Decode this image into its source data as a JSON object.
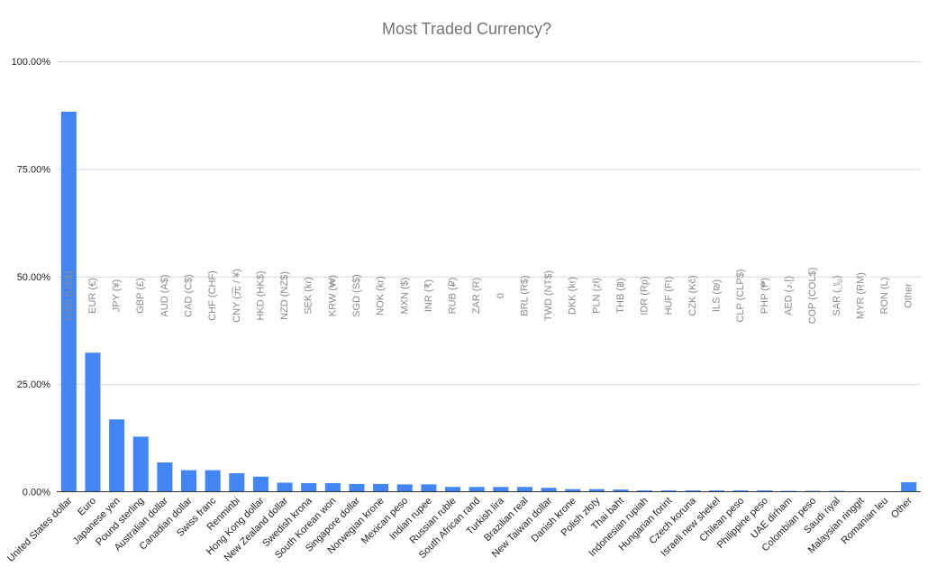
{
  "chart_data": {
    "type": "bar",
    "title": "Most Traded Currency?",
    "xlabel": "",
    "ylabel": "",
    "ylim": [
      0,
      100
    ],
    "yticks": [
      "0.00%",
      "25.00%",
      "50.00%",
      "75.00%",
      "100.00%"
    ],
    "grid": true,
    "legend": "none",
    "bar_color": "#4285f4",
    "categories": [
      "United States dollar",
      "Euro",
      "Japanese yen",
      "Pound sterling",
      "Australian dollar",
      "Canadian dollar",
      "Swiss franc",
      "Renminbi",
      "Hong Kong dollar",
      "New Zealand dollar",
      "Swedish krona",
      "South Korean won",
      "Singapore dollar",
      "Norwegian krone",
      "Mexican peso",
      "Indian rupee",
      "Russian ruble",
      "South African rand",
      "Turkish lira",
      "Brazilian real",
      "New Taiwan dollar",
      "Danish krone",
      "Polish złoty",
      "Thai baht",
      "Indonesian rupiah",
      "Hungarian forint",
      "Czech koruna",
      "Israeli new shekel",
      "Chilean peso",
      "Philippine peso",
      "UAE dirham",
      "Colombian peso",
      "Saudi riyal",
      "Malaysian ringgit",
      "Romanian leu",
      "Other"
    ],
    "data_labels": [
      "USD (US$)",
      "EUR (€)",
      "JPY (¥)",
      "GBP (£)",
      "AUD (A$)",
      "CAD (C$)",
      "CHF (CHF)",
      "CNY (元 / ¥)",
      "HKD (HK$)",
      "NZD (NZ$)",
      "SEK (kr)",
      "KRW (₩)",
      "SGD (S$)",
      "NOK (kr)",
      "MXN ($)",
      "INR (₹)",
      "RUB (₽)",
      "ZAR (R)",
      "0",
      "BRL (R$)",
      "TWD (NT$)",
      "DKK (kr)",
      "PLN (zł)",
      "THB (฿)",
      "IDR (Rp)",
      "HUF (Ft)",
      "CZK (Kč)",
      "ILS (₪)",
      "CLP (CLP$)",
      "PHP (₱)",
      "AED (إ.د)",
      "COP (COL$)",
      "SAR (﷼)",
      "MYR (RM)",
      "RON (L)",
      "Other"
    ],
    "values": [
      88.3,
      32.3,
      16.8,
      12.8,
      6.8,
      5.0,
      5.0,
      4.3,
      3.5,
      2.1,
      2.0,
      2.0,
      1.8,
      1.8,
      1.7,
      1.7,
      1.1,
      1.1,
      1.1,
      1.1,
      0.9,
      0.6,
      0.6,
      0.5,
      0.3,
      0.3,
      0.3,
      0.3,
      0.3,
      0.3,
      0.2,
      0.2,
      0.2,
      0.1,
      0.1,
      2.2
    ]
  }
}
